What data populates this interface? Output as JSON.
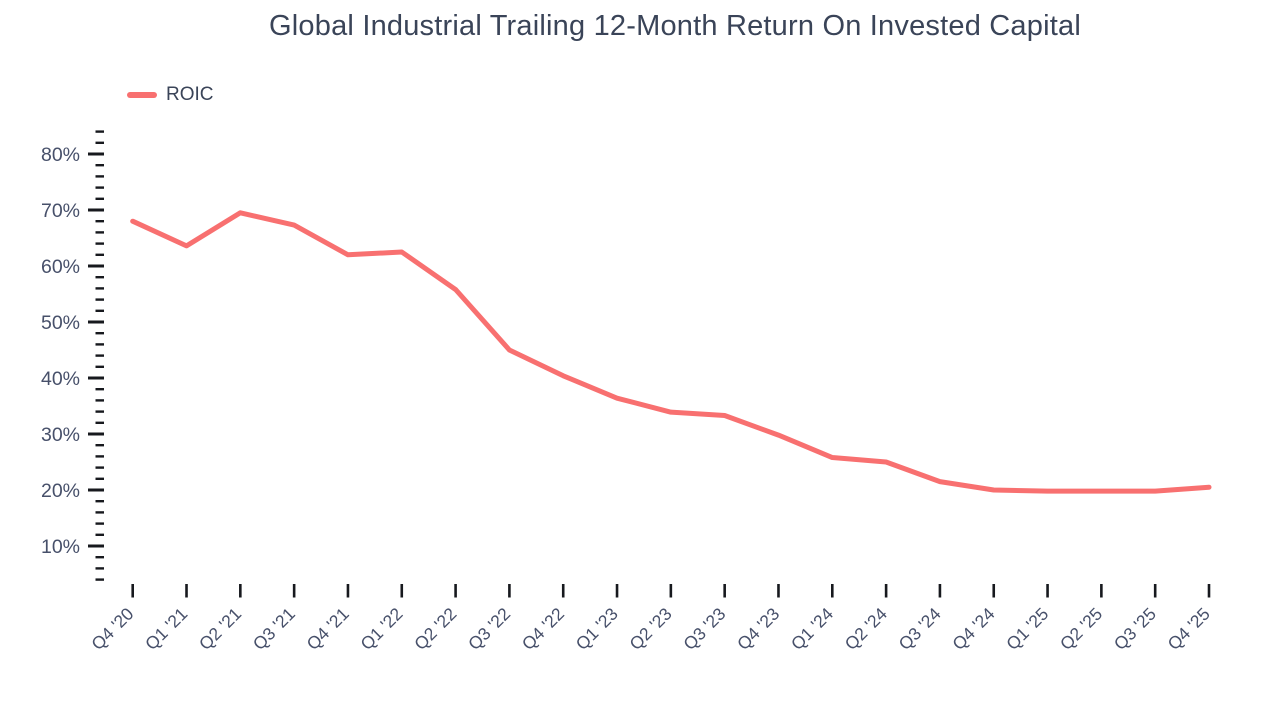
{
  "chart_data": {
    "type": "line",
    "title": "Global Industrial Trailing 12-Month Return On Invested Capital",
    "categories": [
      "Q4 '20",
      "Q1 '21",
      "Q2 '21",
      "Q3 '21",
      "Q4 '21",
      "Q1 '22",
      "Q2 '22",
      "Q3 '22",
      "Q4 '22",
      "Q1 '23",
      "Q2 '23",
      "Q3 '23",
      "Q4 '23",
      "Q1 '24",
      "Q2 '24",
      "Q3 '24",
      "Q4 '24",
      "Q1 '25",
      "Q2 '25",
      "Q3 '25",
      "Q4 '25"
    ],
    "series": [
      {
        "name": "ROIC",
        "color": "#F87070",
        "values": [
          68.0,
          63.6,
          69.5,
          67.3,
          62.0,
          62.5,
          55.8,
          45.0,
          40.4,
          36.4,
          33.9,
          33.3,
          29.8,
          25.8,
          25.0,
          21.5,
          20.0,
          19.8,
          19.8,
          19.8,
          20.5
        ]
      }
    ],
    "xlabel": "",
    "ylabel": "",
    "ylim": [
      4,
      84
    ],
    "y_ticks_major": [
      10,
      20,
      30,
      40,
      50,
      60,
      70,
      80
    ],
    "y_tick_labels": [
      "10%",
      "20%",
      "30%",
      "40%",
      "50%",
      "60%",
      "70%",
      "80%"
    ],
    "y_minor_step": 2,
    "y_tick_suffix": "%",
    "grid": false,
    "legend_position": "top-left"
  },
  "colors": {
    "background": "#FFFFFF",
    "line": "#F87070",
    "title_text": "#3A4458",
    "axis_label_text": "#47506A",
    "tick_mark": "#17191E"
  }
}
